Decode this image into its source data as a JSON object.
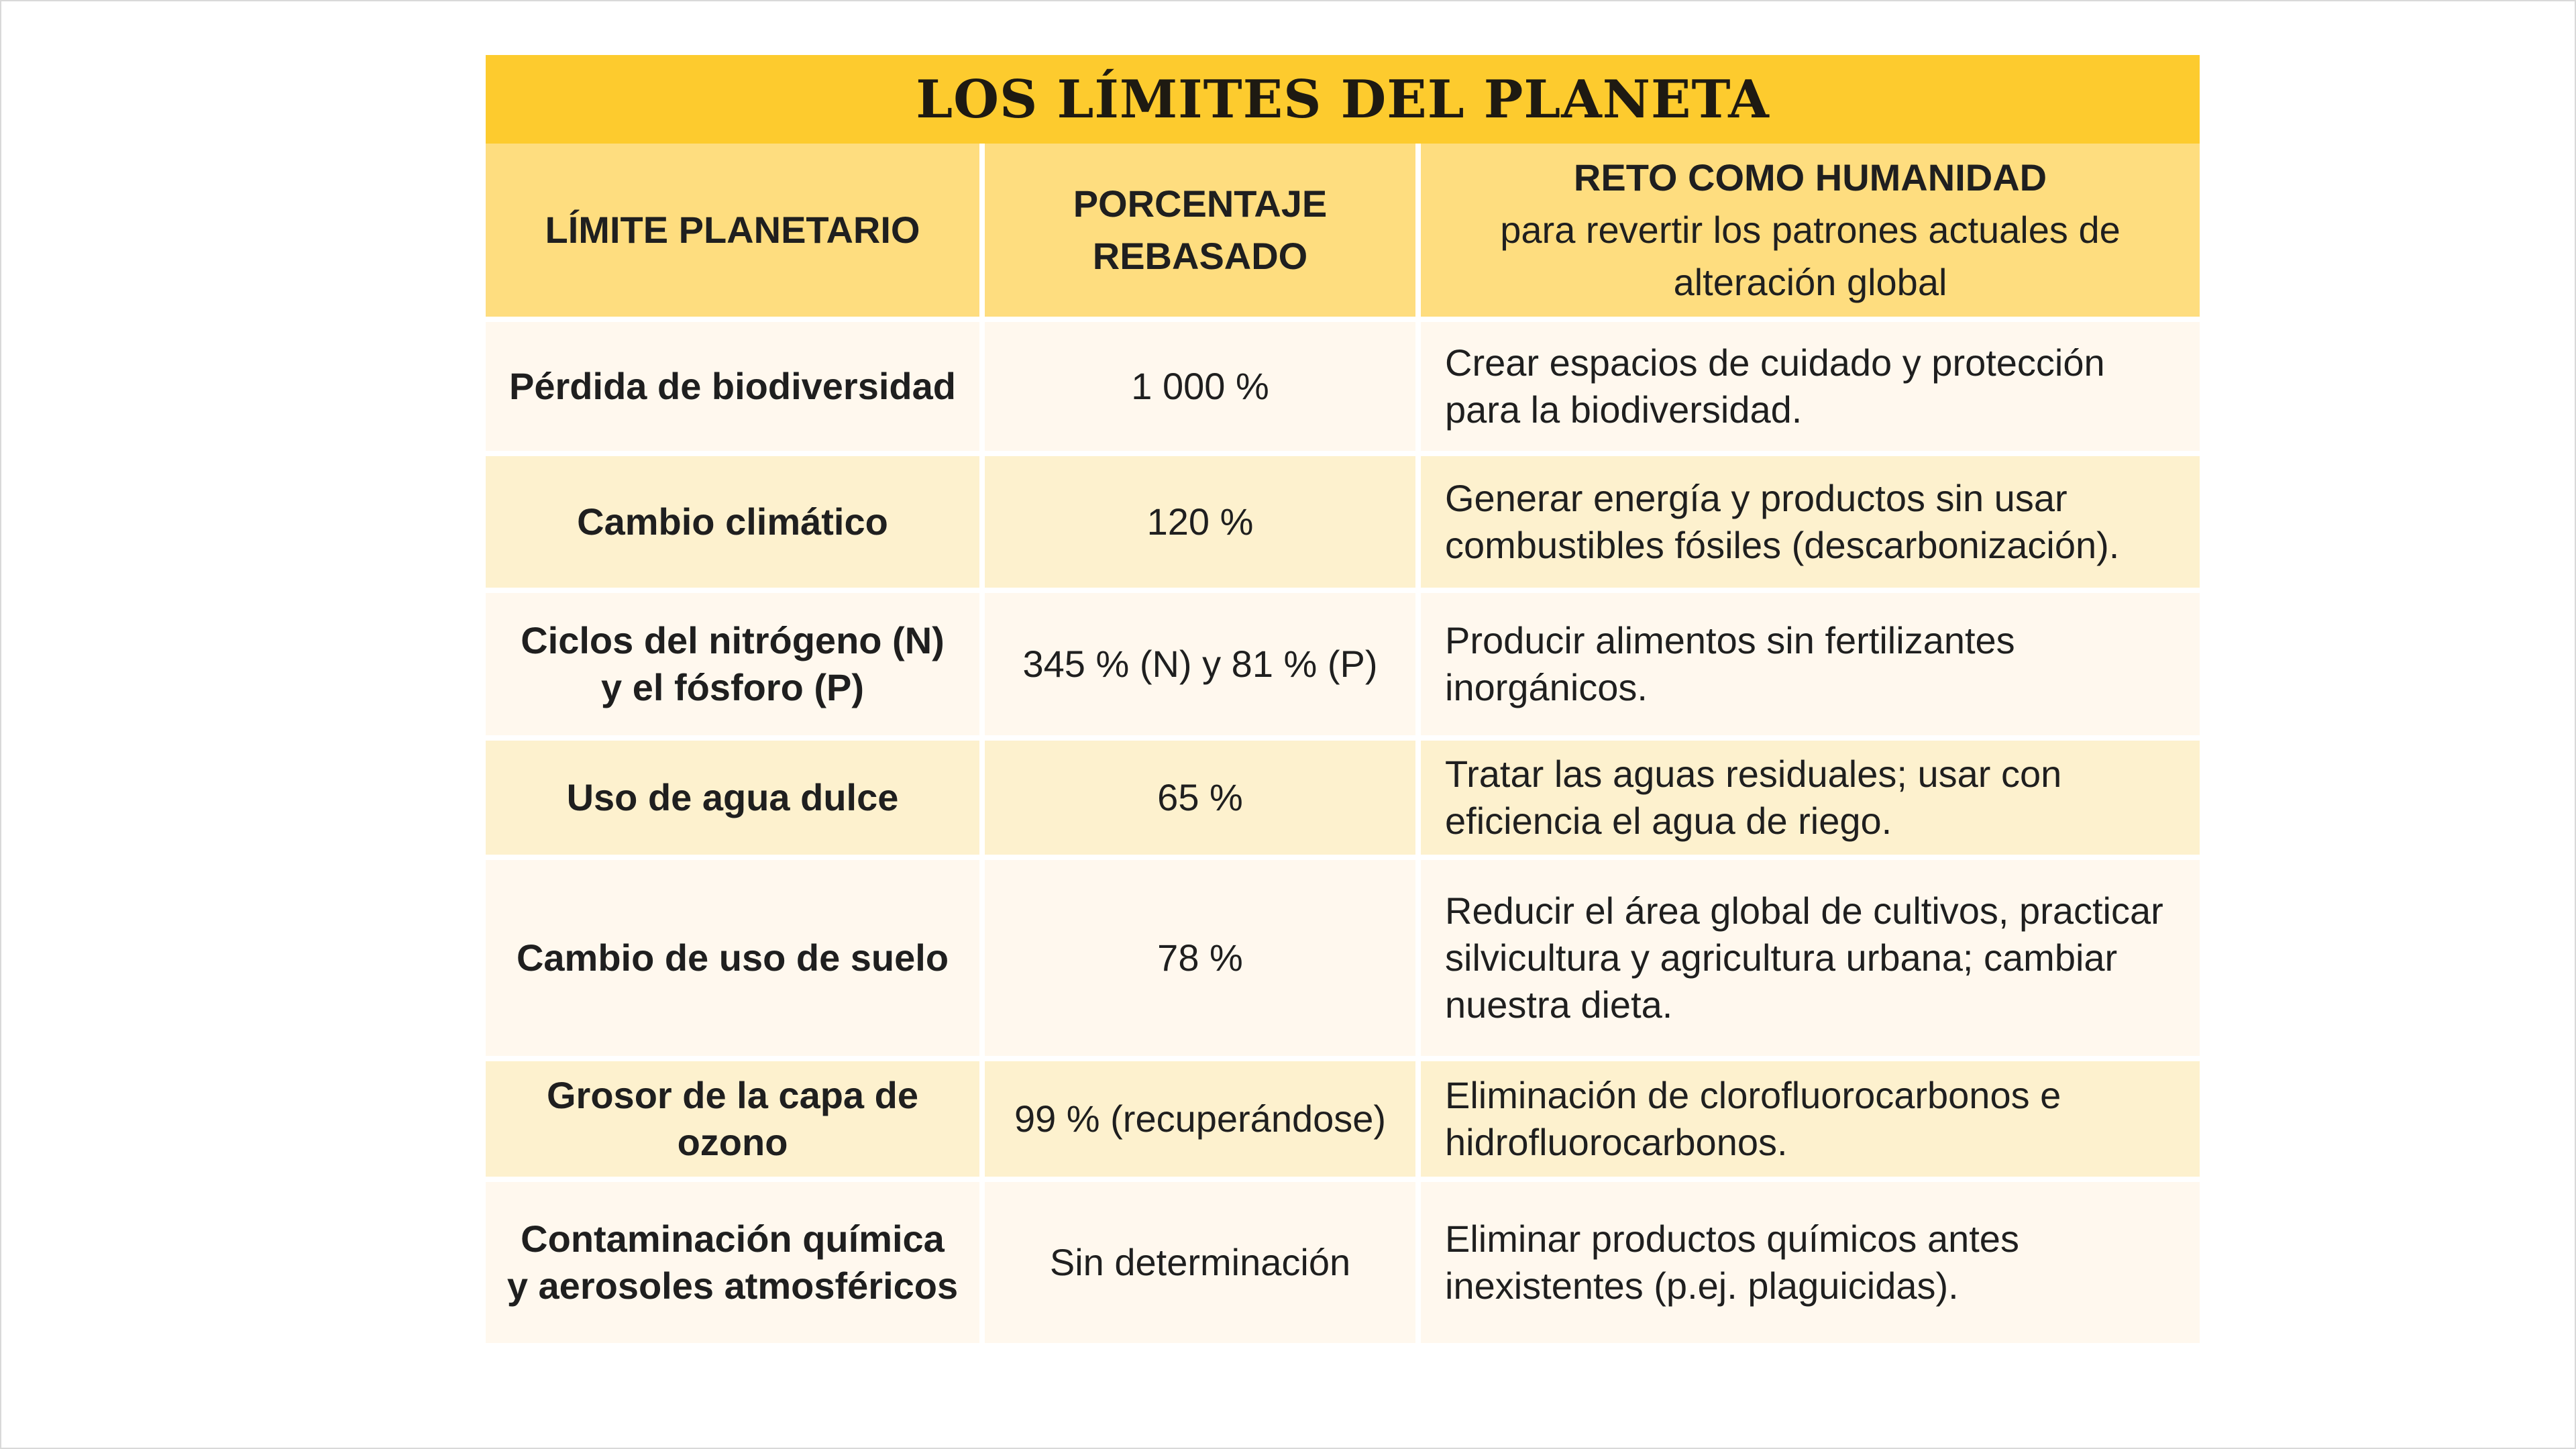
{
  "title": "LOS LÍMITES DEL PLANETA",
  "headers": {
    "col1": "LÍMITE PLANETARIO",
    "col2": "PORCENTAJE REBASADO",
    "col3_bold": "RETO COMO HUMANIDAD",
    "col3_sub": "para revertir los patrones actuales de alteración global"
  },
  "rows": [
    {
      "limite": "Pérdida de biodiversidad",
      "porcentaje": "1 000 %",
      "reto": "Crear espacios de cuidado y protección para la biodiversidad."
    },
    {
      "limite": "Cambio climático",
      "porcentaje": "120 %",
      "reto": "Generar energía y productos sin usar combustibles fósiles (descarbonización)."
    },
    {
      "limite": "Ciclos del nitrógeno (N) y el fósforo (P)",
      "porcentaje": "345 % (N) y 81 % (P)",
      "reto": "Producir alimentos sin fertilizantes inorgánicos."
    },
    {
      "limite": "Uso de agua dulce",
      "porcentaje": "65 %",
      "reto": "Tratar las aguas residuales; usar con eficiencia el agua de riego."
    },
    {
      "limite": "Cambio de uso de suelo",
      "porcentaje": "78 %",
      "reto": "Reducir el área global de cultivos, practicar silvicultura y agricultura urbana; cambiar nuestra dieta."
    },
    {
      "limite": "Grosor de la capa de ozono",
      "porcentaje": "99 % (recuperándose)",
      "reto": "Eliminación de clorofluorocarbonos e hidrofluorocarbonos."
    },
    {
      "limite": "Contaminación química y aerosoles atmosféricos",
      "porcentaje": "Sin determinación",
      "reto": "Eliminar productos químicos antes inexistentes (p.ej. plaguicidas)."
    }
  ],
  "colors": {
    "title_bg": "#fdcb2e",
    "header_bg": "#fedd7f",
    "row_light": "#fff8ee",
    "row_tint": "#fdf1ce"
  }
}
